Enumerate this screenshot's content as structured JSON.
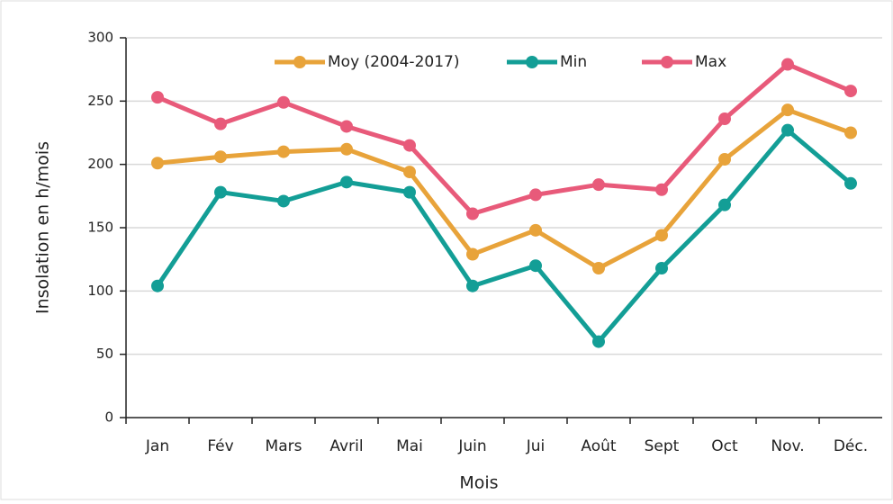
{
  "chart_data": {
    "type": "line",
    "xlabel": "Mois",
    "ylabel": "Insolation en h/mois",
    "categories": [
      "Jan",
      "Fév",
      "Mars",
      "Avril",
      "Mai",
      "Juin",
      "Jui",
      "Août",
      "Sept",
      "Oct",
      "Nov.",
      "Déc."
    ],
    "series": [
      {
        "name": "Moy (2004-2017)",
        "color": "#e8a33a",
        "values": [
          201,
          206,
          210,
          212,
          194,
          129,
          148,
          118,
          144,
          204,
          243,
          225
        ]
      },
      {
        "name": "Min",
        "color": "#139e96",
        "values": [
          104,
          178,
          171,
          186,
          178,
          104,
          120,
          60,
          118,
          168,
          227,
          185
        ]
      },
      {
        "name": "Max",
        "color": "#e85a7a",
        "values": [
          253,
          232,
          249,
          230,
          215,
          161,
          176,
          184,
          180,
          236,
          279,
          258
        ]
      }
    ],
    "ylim": [
      0,
      300
    ],
    "yticks": [
      0,
      50,
      100,
      150,
      200,
      250,
      300
    ],
    "grid": true,
    "legend": "top"
  }
}
